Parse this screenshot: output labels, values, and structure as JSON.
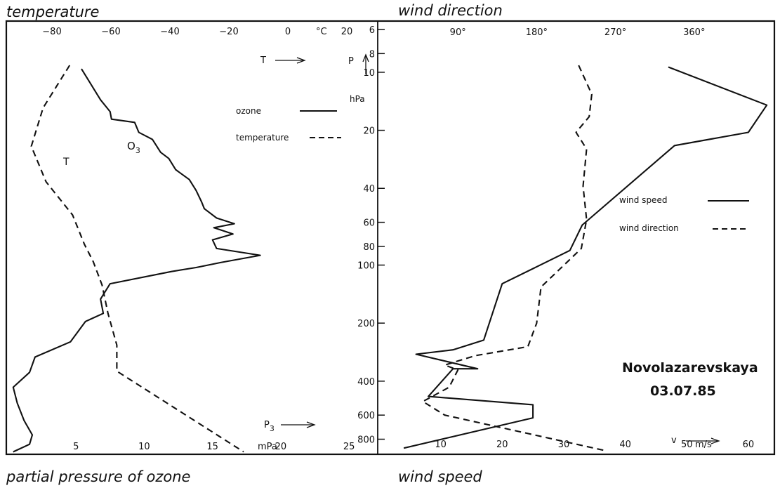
{
  "figure": {
    "top_left_title": "temperature",
    "top_right_title": "wind direction",
    "bottom_left_title": "partial pressure of ozone",
    "bottom_right_title": "wind speed",
    "station": "Novolazarevskaya",
    "date": "03.07.85"
  },
  "colors": {
    "ink": "#111111",
    "background": "#ffffff"
  },
  "chart_data": [
    {
      "type": "line",
      "title": "",
      "panel": "left",
      "pressure_axis": {
        "label": "P",
        "unit": "hPa",
        "scale": "log",
        "inverted": true,
        "range": [
          6,
          950
        ],
        "ticks": [
          6,
          8,
          10,
          20,
          40,
          60,
          80,
          100,
          200,
          400,
          600,
          800
        ]
      },
      "top_axis": {
        "quantity": "temperature",
        "label": "T",
        "unit": "°C",
        "range": [
          -95,
          30
        ],
        "ticks": [
          -80,
          -60,
          -40,
          -20,
          0,
          20
        ]
      },
      "bottom_axis": {
        "quantity": "partial pressure of ozone",
        "label": "P3",
        "unit": "mPa",
        "range": [
          0,
          27
        ],
        "ticks": [
          5,
          10,
          15,
          20,
          25
        ]
      },
      "legend": {
        "placement": "top-right",
        "entries": [
          "ozone",
          "temperature"
        ]
      },
      "curve_labels": [
        "O3",
        "T"
      ],
      "series": [
        {
          "name": "ozone",
          "axis": "bottom",
          "style": "solid",
          "points": [
            {
              "p": 9.6,
              "v": 5.4
            },
            {
              "p": 13.9,
              "v": 6.8
            },
            {
              "p": 16,
              "v": 7.5
            },
            {
              "p": 17.5,
              "v": 7.6
            },
            {
              "p": 18.2,
              "v": 9.3
            },
            {
              "p": 20.5,
              "v": 9.6
            },
            {
              "p": 22.3,
              "v": 10.6
            },
            {
              "p": 26,
              "v": 11.2
            },
            {
              "p": 28,
              "v": 11.8
            },
            {
              "p": 32,
              "v": 12.3
            },
            {
              "p": 36,
              "v": 13.3
            },
            {
              "p": 41,
              "v": 13.8
            },
            {
              "p": 47,
              "v": 14.2
            },
            {
              "p": 51,
              "v": 14.4
            },
            {
              "p": 57,
              "v": 15.3
            },
            {
              "p": 61,
              "v": 16.6
            },
            {
              "p": 64,
              "v": 15.1
            },
            {
              "p": 69,
              "v": 16.5
            },
            {
              "p": 74,
              "v": 15.0
            },
            {
              "p": 82,
              "v": 15.3
            },
            {
              "p": 89,
              "v": 18.5
            },
            {
              "p": 97,
              "v": 15.6
            },
            {
              "p": 103,
              "v": 13.8
            },
            {
              "p": 108,
              "v": 12.0
            },
            {
              "p": 125,
              "v": 7.5
            },
            {
              "p": 150,
              "v": 6.8
            },
            {
              "p": 178,
              "v": 7.0
            },
            {
              "p": 196,
              "v": 5.7
            },
            {
              "p": 250,
              "v": 4.6
            },
            {
              "p": 300,
              "v": 2.0
            },
            {
              "p": 360,
              "v": 1.6
            },
            {
              "p": 430,
              "v": 0.4
            },
            {
              "p": 520,
              "v": 0.7
            },
            {
              "p": 640,
              "v": 1.2
            },
            {
              "p": 760,
              "v": 1.8
            },
            {
              "p": 850,
              "v": 1.6
            },
            {
              "p": 930,
              "v": 0.4
            }
          ]
        },
        {
          "name": "temperature",
          "axis": "top",
          "style": "dashed",
          "points": [
            {
              "p": 9.2,
              "t": -74
            },
            {
              "p": 15.3,
              "t": -83
            },
            {
              "p": 24.2,
              "t": -87
            },
            {
              "p": 37,
              "t": -82
            },
            {
              "p": 55,
              "t": -73
            },
            {
              "p": 78,
              "t": -69
            },
            {
              "p": 96,
              "t": -66
            },
            {
              "p": 127,
              "t": -63
            },
            {
              "p": 178,
              "t": -61
            },
            {
              "p": 260,
              "t": -58
            },
            {
              "p": 355,
              "t": -58
            },
            {
              "p": 930,
              "t": -15
            }
          ]
        }
      ]
    },
    {
      "type": "line",
      "title": "",
      "panel": "right",
      "top_axis": {
        "quantity": "wind direction",
        "unit": "°",
        "range": [
          0,
          450
        ],
        "ticks": [
          90,
          180,
          270,
          360
        ],
        "tick_labels": [
          "90°",
          "180°",
          "270°",
          "360°"
        ]
      },
      "bottom_axis": {
        "quantity": "wind speed",
        "label": "v",
        "unit": "m/s",
        "range": [
          0,
          64
        ],
        "ticks": [
          10,
          20,
          30,
          40,
          50,
          60
        ]
      },
      "legend": {
        "placement": "right",
        "entries": [
          "wind speed",
          "wind direction"
        ]
      },
      "series": [
        {
          "name": "wind speed",
          "axis": "bottom",
          "style": "solid",
          "points": [
            {
              "p": 9.4,
              "v": 47
            },
            {
              "p": 14.8,
              "v": 63
            },
            {
              "p": 20.5,
              "v": 60
            },
            {
              "p": 24,
              "v": 48
            },
            {
              "p": 62,
              "v": 33
            },
            {
              "p": 84,
              "v": 31
            },
            {
              "p": 125,
              "v": 20
            },
            {
              "p": 245,
              "v": 17
            },
            {
              "p": 275,
              "v": 12
            },
            {
              "p": 290,
              "v": 6
            },
            {
              "p": 345,
              "v": 16
            },
            {
              "p": 345,
              "v": 12
            },
            {
              "p": 480,
              "v": 8
            },
            {
              "p": 530,
              "v": 25
            },
            {
              "p": 620,
              "v": 25
            },
            {
              "p": 890,
              "v": 4
            }
          ]
        },
        {
          "name": "wind direction",
          "axis": "top",
          "style": "dashed",
          "points": [
            {
              "p": 9.2,
              "d": 228
            },
            {
              "p": 13,
              "d": 243
            },
            {
              "p": 17,
              "d": 240
            },
            {
              "p": 20.5,
              "d": 225
            },
            {
              "p": 25,
              "d": 237
            },
            {
              "p": 39,
              "d": 233
            },
            {
              "p": 58,
              "d": 237
            },
            {
              "p": 82,
              "d": 231
            },
            {
              "p": 130,
              "d": 185
            },
            {
              "p": 200,
              "d": 180
            },
            {
              "p": 265,
              "d": 170
            },
            {
              "p": 295,
              "d": 110
            },
            {
              "p": 330,
              "d": 75
            },
            {
              "p": 350,
              "d": 90
            },
            {
              "p": 430,
              "d": 80
            },
            {
              "p": 510,
              "d": 50
            },
            {
              "p": 600,
              "d": 75
            },
            {
              "p": 920,
              "d": 260
            }
          ]
        }
      ]
    }
  ]
}
